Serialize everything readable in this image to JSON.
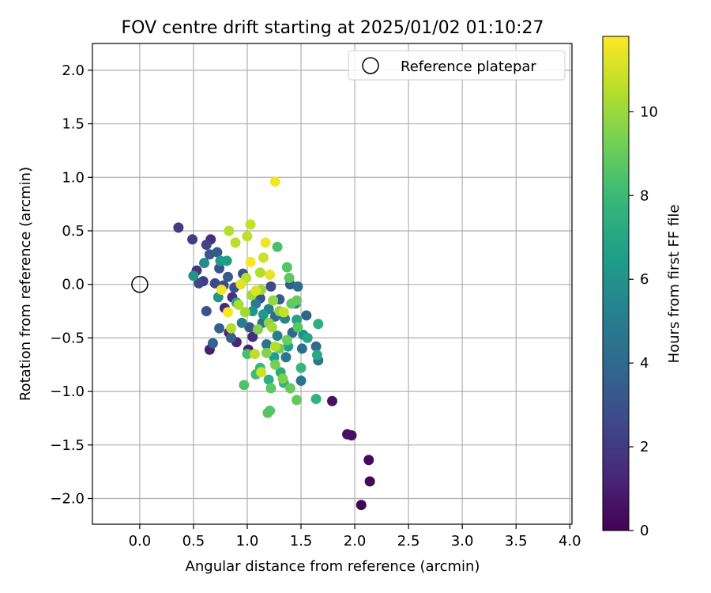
{
  "chart_data": {
    "type": "scatter",
    "title": "FOV centre drift starting at 2025/01/02 01:10:27",
    "xlabel": "Angular distance from reference (arcmin)",
    "ylabel": "Rotation from reference (arcmin)",
    "xlim": [
      -0.44,
      4.02
    ],
    "ylim": [
      -2.24,
      2.25
    ],
    "xticks": [
      0.0,
      0.5,
      1.0,
      1.5,
      2.0,
      2.5,
      3.0,
      3.5,
      4.0
    ],
    "xtick_labels": [
      "0.0",
      "0.5",
      "1.0",
      "1.5",
      "2.0",
      "2.5",
      "3.0",
      "3.5",
      "4.0"
    ],
    "yticks": [
      2.0,
      1.5,
      1.0,
      0.5,
      0.0,
      -0.5,
      -1.0,
      -1.5,
      -2.0
    ],
    "ytick_labels": [
      "2.0",
      "1.5",
      "1.0",
      "0.5",
      "0.0",
      "−0.5",
      "−1.0",
      "−1.5",
      "−2.0"
    ],
    "grid": true,
    "legend": {
      "position": "top-right",
      "label": "Reference platepar"
    },
    "reference_point": {
      "x": 0.0,
      "y": 0.0
    },
    "colorbar": {
      "label": "Hours from first FF file",
      "range": [
        0,
        11.8
      ],
      "ticks": [
        0,
        2,
        4,
        6,
        8,
        10
      ],
      "tick_labels": [
        "0",
        "2",
        "4",
        "6",
        "8",
        "10"
      ],
      "colormap": "viridis"
    },
    "points": [
      {
        "x": 2.06,
        "y": -2.06,
        "c": 0.1
      },
      {
        "x": 2.14,
        "y": -1.84,
        "c": 0.2
      },
      {
        "x": 2.13,
        "y": -1.64,
        "c": 0.3
      },
      {
        "x": 1.97,
        "y": -1.41,
        "c": 0.4
      },
      {
        "x": 1.93,
        "y": -1.4,
        "c": 0.5
      },
      {
        "x": 1.79,
        "y": -1.09,
        "c": 0.6
      },
      {
        "x": 0.65,
        "y": -0.61,
        "c": 1.0
      },
      {
        "x": 0.9,
        "y": -0.54,
        "c": 1.2
      },
      {
        "x": 1.01,
        "y": -0.61,
        "c": 1.1
      },
      {
        "x": 0.83,
        "y": -0.45,
        "c": 1.4
      },
      {
        "x": 0.79,
        "y": -0.22,
        "c": 1.3
      },
      {
        "x": 0.86,
        "y": -0.12,
        "c": 1.6
      },
      {
        "x": 1.05,
        "y": -0.49,
        "c": 1.5
      },
      {
        "x": 0.66,
        "y": 0.42,
        "c": 1.5
      },
      {
        "x": 0.53,
        "y": 0.13,
        "c": 1.8
      },
      {
        "x": 0.36,
        "y": 0.53,
        "c": 2.0
      },
      {
        "x": 0.49,
        "y": 0.42,
        "c": 2.2
      },
      {
        "x": 0.62,
        "y": 0.37,
        "c": 2.4
      },
      {
        "x": 0.59,
        "y": 0.03,
        "c": 2.2
      },
      {
        "x": 0.55,
        "y": 0.01,
        "c": 2.5
      },
      {
        "x": 0.7,
        "y": 0.01,
        "c": 2.6
      },
      {
        "x": 0.78,
        "y": -0.01,
        "c": 2.7
      },
      {
        "x": 0.88,
        "y": -0.03,
        "c": 2.8
      },
      {
        "x": 0.96,
        "y": 0.1,
        "c": 2.9
      },
      {
        "x": 0.62,
        "y": -0.25,
        "c": 3.0
      },
      {
        "x": 0.74,
        "y": 0.15,
        "c": 3.1
      },
      {
        "x": 0.65,
        "y": 0.28,
        "c": 3.2
      },
      {
        "x": 0.72,
        "y": 0.3,
        "c": 3.3
      },
      {
        "x": 0.82,
        "y": 0.07,
        "c": 3.4
      },
      {
        "x": 0.85,
        "y": -0.5,
        "c": 3.5
      },
      {
        "x": 0.74,
        "y": -0.41,
        "c": 3.6
      },
      {
        "x": 0.68,
        "y": -0.55,
        "c": 3.7
      },
      {
        "x": 1.02,
        "y": -0.4,
        "c": 3.2
      },
      {
        "x": 1.12,
        "y": -0.13,
        "c": 3.0
      },
      {
        "x": 1.22,
        "y": -0.02,
        "c": 2.8
      },
      {
        "x": 1.3,
        "y": -0.14,
        "c": 3.3
      },
      {
        "x": 1.4,
        "y": 0.0,
        "c": 3.4
      },
      {
        "x": 1.47,
        "y": -0.02,
        "c": 4.2
      },
      {
        "x": 1.55,
        "y": -0.29,
        "c": 3.8
      },
      {
        "x": 1.64,
        "y": -0.58,
        "c": 4.1
      },
      {
        "x": 1.66,
        "y": -0.71,
        "c": 4.4
      },
      {
        "x": 1.51,
        "y": -0.6,
        "c": 4.3
      },
      {
        "x": 1.42,
        "y": -0.45,
        "c": 3.9
      },
      {
        "x": 1.36,
        "y": -0.68,
        "c": 4.6
      },
      {
        "x": 1.5,
        "y": -0.9,
        "c": 4.5
      },
      {
        "x": 1.26,
        "y": -0.3,
        "c": 4.0
      },
      {
        "x": 1.14,
        "y": -0.36,
        "c": 4.2
      },
      {
        "x": 1.18,
        "y": -0.56,
        "c": 4.6
      },
      {
        "x": 1.08,
        "y": -0.18,
        "c": 4.8
      },
      {
        "x": 0.95,
        "y": -0.36,
        "c": 4.9
      },
      {
        "x": 1.2,
        "y": -0.23,
        "c": 5.0
      },
      {
        "x": 1.28,
        "y": -0.48,
        "c": 5.2
      },
      {
        "x": 1.35,
        "y": -0.32,
        "c": 5.4
      },
      {
        "x": 1.45,
        "y": -0.18,
        "c": 5.6
      },
      {
        "x": 1.52,
        "y": -0.47,
        "c": 5.8
      },
      {
        "x": 0.5,
        "y": 0.08,
        "c": 6.0
      },
      {
        "x": 0.6,
        "y": 0.2,
        "c": 5.6
      },
      {
        "x": 0.73,
        "y": -0.12,
        "c": 6.2
      },
      {
        "x": 0.75,
        "y": 0.22,
        "c": 6.4
      },
      {
        "x": 0.81,
        "y": 0.22,
        "c": 6.6
      },
      {
        "x": 0.9,
        "y": -0.17,
        "c": 6.8
      },
      {
        "x": 1.05,
        "y": -0.25,
        "c": 6.1
      },
      {
        "x": 1.15,
        "y": -0.28,
        "c": 6.3
      },
      {
        "x": 1.25,
        "y": -0.68,
        "c": 6.5
      },
      {
        "x": 1.38,
        "y": -0.58,
        "c": 6.7
      },
      {
        "x": 1.46,
        "y": -0.33,
        "c": 6.9
      },
      {
        "x": 1.56,
        "y": -0.5,
        "c": 7.0
      },
      {
        "x": 1.65,
        "y": -0.66,
        "c": 7.2
      },
      {
        "x": 1.66,
        "y": -0.37,
        "c": 7.4
      },
      {
        "x": 1.64,
        "y": -1.07,
        "c": 7.6
      },
      {
        "x": 1.5,
        "y": -0.78,
        "c": 7.8
      },
      {
        "x": 1.31,
        "y": -0.82,
        "c": 7.3
      },
      {
        "x": 1.2,
        "y": -0.89,
        "c": 7.5
      },
      {
        "x": 1.34,
        "y": -0.92,
        "c": 7.7
      },
      {
        "x": 1.12,
        "y": -0.78,
        "c": 7.9
      },
      {
        "x": 1.08,
        "y": -0.84,
        "c": 8.1
      },
      {
        "x": 1.0,
        "y": -0.65,
        "c": 8.3
      },
      {
        "x": 0.97,
        "y": -0.94,
        "c": 8.5
      },
      {
        "x": 1.19,
        "y": -1.2,
        "c": 8.7
      },
      {
        "x": 1.21,
        "y": -1.18,
        "c": 8.6
      },
      {
        "x": 1.22,
        "y": -0.97,
        "c": 8.8
      },
      {
        "x": 1.46,
        "y": -1.08,
        "c": 8.9
      },
      {
        "x": 1.4,
        "y": -0.97,
        "c": 9.0
      },
      {
        "x": 1.28,
        "y": 0.35,
        "c": 8.4
      },
      {
        "x": 1.37,
        "y": 0.16,
        "c": 8.6
      },
      {
        "x": 1.39,
        "y": 0.06,
        "c": 8.8
      },
      {
        "x": 1.41,
        "y": -0.18,
        "c": 8.9
      },
      {
        "x": 1.46,
        "y": -0.15,
        "c": 9.0
      },
      {
        "x": 1.47,
        "y": -0.4,
        "c": 8.7
      },
      {
        "x": 1.37,
        "y": -0.52,
        "c": 9.1
      },
      {
        "x": 1.3,
        "y": -0.6,
        "c": 9.2
      },
      {
        "x": 1.26,
        "y": -0.75,
        "c": 9.3
      },
      {
        "x": 1.33,
        "y": -0.88,
        "c": 9.4
      },
      {
        "x": 1.18,
        "y": -0.64,
        "c": 9.5
      },
      {
        "x": 1.1,
        "y": -0.42,
        "c": 9.6
      },
      {
        "x": 1.2,
        "y": -0.36,
        "c": 9.7
      },
      {
        "x": 1.3,
        "y": -0.25,
        "c": 9.8
      },
      {
        "x": 1.24,
        "y": -0.15,
        "c": 9.9
      },
      {
        "x": 1.13,
        "y": -0.05,
        "c": 10.0
      },
      {
        "x": 1.04,
        "y": -0.1,
        "c": 10.1
      },
      {
        "x": 0.98,
        "y": -0.26,
        "c": 10.2
      },
      {
        "x": 0.92,
        "y": -0.19,
        "c": 10.3
      },
      {
        "x": 0.85,
        "y": -0.41,
        "c": 10.4
      },
      {
        "x": 0.83,
        "y": 0.5,
        "c": 10.5
      },
      {
        "x": 0.89,
        "y": 0.39,
        "c": 10.6
      },
      {
        "x": 1.0,
        "y": 0.45,
        "c": 10.7
      },
      {
        "x": 1.03,
        "y": 0.56,
        "c": 10.8
      },
      {
        "x": 1.15,
        "y": 0.25,
        "c": 10.9
      },
      {
        "x": 1.12,
        "y": 0.11,
        "c": 10.4
      },
      {
        "x": 0.99,
        "y": 0.06,
        "c": 10.6
      },
      {
        "x": 1.23,
        "y": -0.4,
        "c": 10.2
      },
      {
        "x": 1.26,
        "y": -0.58,
        "c": 10.5
      },
      {
        "x": 1.34,
        "y": -0.26,
        "c": 10.8
      },
      {
        "x": 1.13,
        "y": -0.82,
        "c": 10.9
      },
      {
        "x": 1.07,
        "y": -0.65,
        "c": 10.7
      },
      {
        "x": 1.17,
        "y": 0.39,
        "c": 11.5
      },
      {
        "x": 1.26,
        "y": 0.96,
        "c": 11.6
      },
      {
        "x": 1.21,
        "y": 0.09,
        "c": 11.4
      },
      {
        "x": 1.03,
        "y": 0.21,
        "c": 11.7
      },
      {
        "x": 0.76,
        "y": -0.05,
        "c": 11.6
      },
      {
        "x": 0.82,
        "y": -0.26,
        "c": 11.7
      },
      {
        "x": 0.94,
        "y": 0.0,
        "c": 11.3
      },
      {
        "x": 1.08,
        "y": -0.06,
        "c": 11.2
      }
    ]
  }
}
